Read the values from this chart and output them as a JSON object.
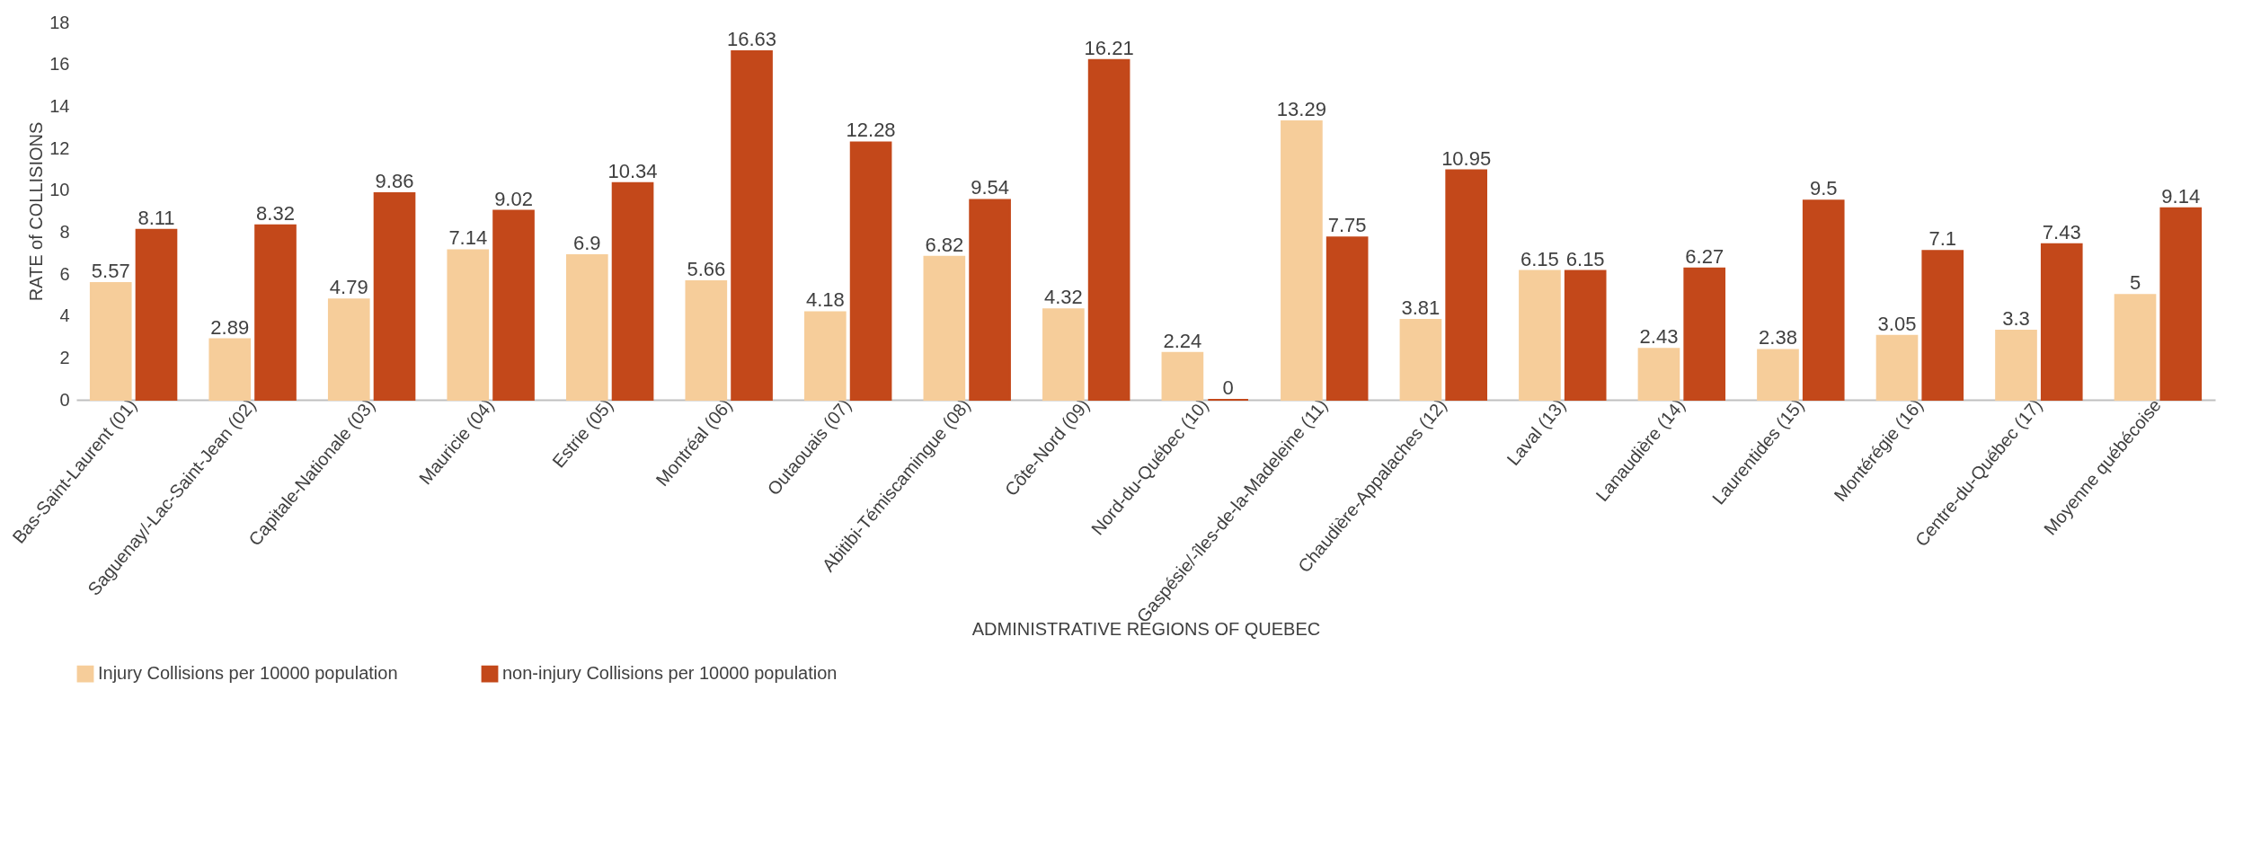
{
  "chart_data": {
    "type": "bar",
    "xlabel": "ADMINISTRATIVE REGIONS OF QUEBEC",
    "ylabel": "RATE of COLLISIONS",
    "categories": [
      "Bas-Saint-Laurent (01)",
      "Saguenay/-Lac-Saint-Jean (02)",
      "Capitale-Nationale (03)",
      "Mauricie (04)",
      "Estrie (05)",
      "Montréal (06)",
      "Outaouais (07)",
      "Abitibi-Témiscamingue (08)",
      "Côte-Nord (09)",
      "Nord-du-Québec (10)",
      "Gaspésie/-îles-de-la-Madeleine (11)",
      "Chaudière-Appalaches (12)",
      "Laval (13)",
      "Lanaudière (14)",
      "Laurentides (15)",
      "Montérégie (16)",
      "Centre-du-Québec (17)",
      "Moyenne québécoise"
    ],
    "series": [
      {
        "name": "Injury Collisions per 10000 population",
        "color": "#f6cd9a",
        "values": [
          5.57,
          2.89,
          4.79,
          7.14,
          6.9,
          5.66,
          4.18,
          6.82,
          4.32,
          2.24,
          13.29,
          3.81,
          6.15,
          2.43,
          2.38,
          3.05,
          3.3,
          5
        ]
      },
      {
        "name": "non-injury Collisions per 10000 population",
        "color": "#c3481a",
        "values": [
          8.11,
          8.32,
          9.86,
          9.02,
          10.34,
          16.63,
          12.28,
          9.54,
          16.21,
          0,
          7.75,
          10.95,
          6.15,
          6.27,
          9.5,
          7.1,
          7.43,
          9.14
        ]
      }
    ],
    "ylim": [
      0,
      18
    ],
    "yticks": [
      0,
      2,
      4,
      6,
      8,
      10,
      12,
      14,
      16,
      18
    ],
    "grid": false,
    "data_labels": true,
    "legend": "bottom"
  }
}
